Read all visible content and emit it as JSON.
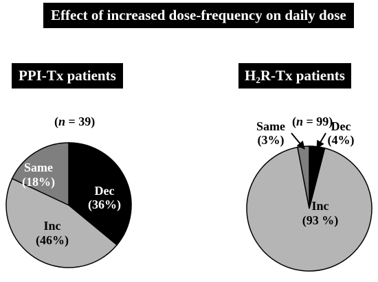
{
  "title": "Effect of increased dose-frequency on daily dose",
  "colors": {
    "Dec": "#000000",
    "Inc": "#b5b5b5",
    "Same": "#7f7f7f",
    "outline": "#000000"
  },
  "chart_data": [
    {
      "type": "pie",
      "title": "PPI-Tx patients",
      "n_label": "= 39",
      "slices": [
        {
          "name": "Dec",
          "label": "Dec",
          "pct_label": "(36%)",
          "value": 36
        },
        {
          "name": "Inc",
          "label": "Inc",
          "pct_label": "(46%)",
          "value": 46
        },
        {
          "name": "Same",
          "label": "Same",
          "pct_label": "(18%)",
          "value": 18
        }
      ]
    },
    {
      "type": "pie",
      "title_prefix": "H",
      "title_sub": "2",
      "title_suffix": "R-Tx patients",
      "n_label": "= 99)",
      "slices": [
        {
          "name": "Dec",
          "label": "Dec",
          "pct_label": "(4%)",
          "value": 4
        },
        {
          "name": "Inc",
          "label": "Inc",
          "pct_label": "(93 %)",
          "value": 93
        },
        {
          "name": "Same",
          "label": "Same",
          "pct_label": "(3%)",
          "value": 3
        }
      ]
    }
  ]
}
